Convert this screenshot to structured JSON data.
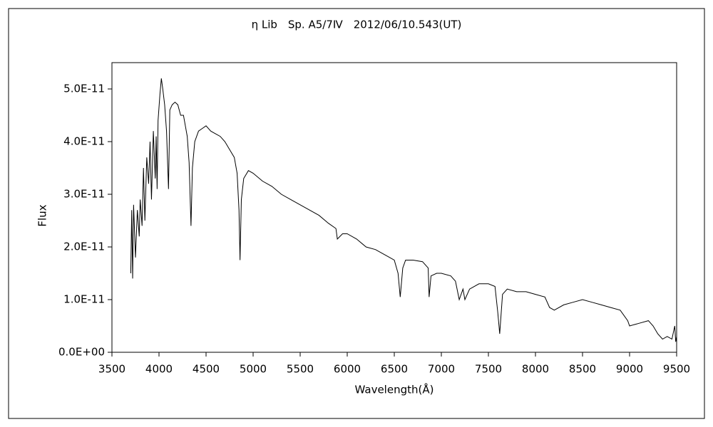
{
  "chart_data": {
    "type": "line",
    "title": "η Lib　Sp. A5/7Ⅳ　2012/06/10.543(UT)",
    "x_label": "Wavelength(Å)",
    "y_label": "Flux",
    "color": "#000000",
    "xlim": [
      3500,
      9500
    ],
    "xticks": [
      3500,
      4000,
      4500,
      5000,
      5500,
      6000,
      6500,
      7000,
      7500,
      8000,
      8500,
      9000,
      9500
    ],
    "ylim": [
      0,
      5.5e-11
    ],
    "yticks": [
      {
        "value": 0,
        "label": "0.0E+00"
      },
      {
        "value": 1e-11,
        "label": "1.0E-11"
      },
      {
        "value": 2e-11,
        "label": "2.0E-11"
      },
      {
        "value": 3e-11,
        "label": "3.0E-11"
      },
      {
        "value": 4e-11,
        "label": "4.0E-11"
      },
      {
        "value": 5e-11,
        "label": "5.0E-11"
      }
    ],
    "x": [
      3700,
      3710,
      3720,
      3730,
      3750,
      3770,
      3790,
      3800,
      3820,
      3835,
      3850,
      3870,
      3890,
      3905,
      3920,
      3940,
      3960,
      3970,
      3980,
      3990,
      4010,
      4025,
      4040,
      4060,
      4080,
      4101,
      4115,
      4140,
      4170,
      4200,
      4230,
      4260,
      4280,
      4300,
      4320,
      4340,
      4355,
      4380,
      4420,
      4460,
      4500,
      4550,
      4600,
      4650,
      4700,
      4750,
      4800,
      4830,
      4850,
      4861,
      4875,
      4900,
      4950,
      5000,
      5100,
      5200,
      5300,
      5400,
      5500,
      5600,
      5700,
      5800,
      5880,
      5895,
      5950,
      6000,
      6100,
      6200,
      6300,
      6400,
      6500,
      6540,
      6563,
      6590,
      6620,
      6700,
      6800,
      6860,
      6870,
      6890,
      6950,
      7000,
      7100,
      7150,
      7190,
      7230,
      7250,
      7300,
      7400,
      7500,
      7570,
      7600,
      7620,
      7650,
      7700,
      7800,
      7900,
      8000,
      8100,
      8150,
      8200,
      8300,
      8400,
      8500,
      8600,
      8700,
      8800,
      8900,
      8980,
      9000,
      9100,
      9200,
      9250,
      9300,
      9350,
      9400,
      9450,
      9480,
      9490,
      9500
    ],
    "values": [
      1.5e-11,
      2.7e-11,
      1.4e-11,
      2.8e-11,
      1.8e-11,
      2.7e-11,
      2.2e-11,
      2.9e-11,
      2.4e-11,
      3.5e-11,
      2.5e-11,
      3.7e-11,
      3.2e-11,
      4e-11,
      2.9e-11,
      4.2e-11,
      3.3e-11,
      4.1e-11,
      3.1e-11,
      4.4e-11,
      4.9e-11,
      5.2e-11,
      5e-11,
      4.7e-11,
      4.2e-11,
      3.1e-11,
      4.6e-11,
      4.7e-11,
      4.75e-11,
      4.7e-11,
      4.5e-11,
      4.5e-11,
      4.3e-11,
      4.1e-11,
      3.6e-11,
      2.4e-11,
      3.5e-11,
      4e-11,
      4.2e-11,
      4.25e-11,
      4.3e-11,
      4.2e-11,
      4.15e-11,
      4.1e-11,
      4e-11,
      3.85e-11,
      3.7e-11,
      3.4e-11,
      2.7e-11,
      1.75e-11,
      2.9e-11,
      3.3e-11,
      3.45e-11,
      3.4e-11,
      3.25e-11,
      3.15e-11,
      3e-11,
      2.9e-11,
      2.8e-11,
      2.7e-11,
      2.6e-11,
      2.45e-11,
      2.35e-11,
      2.15e-11,
      2.25e-11,
      2.25e-11,
      2.15e-11,
      2e-11,
      1.95e-11,
      1.85e-11,
      1.75e-11,
      1.5e-11,
      1.05e-11,
      1.6e-11,
      1.75e-11,
      1.75e-11,
      1.72e-11,
      1.6e-11,
      1.05e-11,
      1.45e-11,
      1.5e-11,
      1.5e-11,
      1.45e-11,
      1.35e-11,
      1e-11,
      1.2e-11,
      1e-11,
      1.2e-11,
      1.3e-11,
      1.3e-11,
      1.25e-11,
      7.5e-12,
      3.5e-12,
      1.1e-11,
      1.2e-11,
      1.15e-11,
      1.15e-11,
      1.1e-11,
      1.05e-11,
      8.5e-12,
      8e-12,
      9e-12,
      9.5e-12,
      1e-11,
      9.5e-12,
      9e-12,
      8.5e-12,
      8e-12,
      6e-12,
      5e-12,
      5.5e-12,
      6e-12,
      5e-12,
      3.5e-12,
      2.5e-12,
      3e-12,
      2.5e-12,
      5e-12,
      2e-12,
      3e-12
    ]
  }
}
